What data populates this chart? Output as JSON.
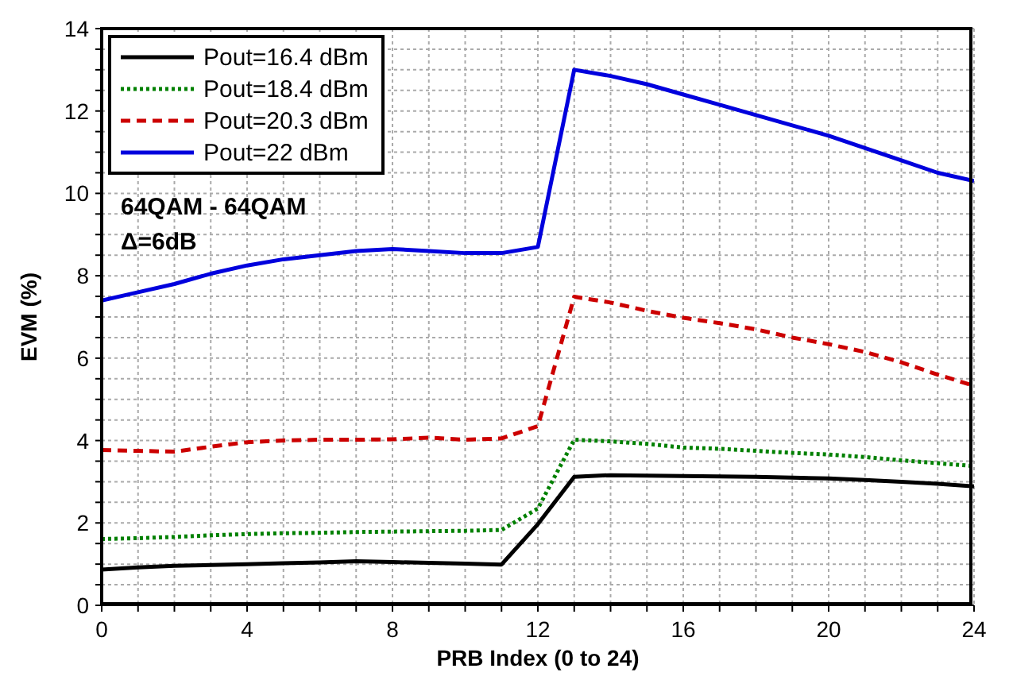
{
  "chart_data": {
    "type": "line",
    "xlabel": "PRB Index (0 to 24)",
    "ylabel": "EVM (%)",
    "x": [
      0,
      1,
      2,
      3,
      4,
      5,
      6,
      7,
      8,
      9,
      10,
      11,
      12,
      13,
      14,
      15,
      16,
      17,
      18,
      19,
      20,
      21,
      22,
      23,
      24
    ],
    "series": [
      {
        "name": "Pout=16.4 dBm",
        "color": "#000000",
        "line_style": "solid",
        "values": [
          0.87,
          0.92,
          0.96,
          0.98,
          1.0,
          1.02,
          1.04,
          1.07,
          1.05,
          1.03,
          1.01,
          0.99,
          1.97,
          3.12,
          3.16,
          3.15,
          3.14,
          3.13,
          3.12,
          3.1,
          3.08,
          3.04,
          3.0,
          2.95,
          2.89
        ]
      },
      {
        "name": "Pout=18.4 dBm",
        "color": "#008000",
        "line_style": "dotted",
        "values": [
          1.61,
          1.63,
          1.66,
          1.7,
          1.73,
          1.75,
          1.76,
          1.78,
          1.79,
          1.8,
          1.81,
          1.83,
          2.35,
          4.02,
          3.98,
          3.92,
          3.83,
          3.8,
          3.75,
          3.7,
          3.66,
          3.6,
          3.52,
          3.45,
          3.38
        ]
      },
      {
        "name": "Pout=20.3 dBm",
        "color": "#cc0000",
        "line_style": "dashed",
        "values": [
          3.77,
          3.75,
          3.73,
          3.85,
          3.96,
          4.0,
          4.02,
          4.02,
          4.03,
          4.07,
          4.02,
          4.05,
          4.35,
          7.49,
          7.35,
          7.15,
          6.98,
          6.85,
          6.7,
          6.5,
          6.34,
          6.15,
          5.9,
          5.6,
          5.33
        ]
      },
      {
        "name": "Pout=22 dBm",
        "color": "#0000dd",
        "line_style": "solid",
        "values": [
          7.4,
          7.6,
          7.8,
          8.05,
          8.25,
          8.4,
          8.5,
          8.6,
          8.65,
          8.6,
          8.55,
          8.55,
          8.7,
          13.0,
          12.85,
          12.65,
          12.4,
          12.15,
          11.9,
          11.65,
          11.4,
          11.1,
          10.8,
          10.5,
          10.3
        ]
      }
    ],
    "xlim": [
      0,
      24
    ],
    "xticks": [
      0,
      {
        "value": 1,
        "label": null
      },
      {
        "value": 2,
        "label": null
      },
      {
        "value": 3,
        "label": null
      },
      4,
      {
        "value": 5,
        "label": null
      },
      {
        "value": 6,
        "label": null
      },
      {
        "value": 7,
        "label": null
      },
      8,
      {
        "value": 9,
        "label": null
      },
      {
        "value": 10,
        "label": null
      },
      {
        "value": 11,
        "label": null
      },
      12,
      {
        "value": 13,
        "label": null
      },
      {
        "value": 14,
        "label": null
      },
      {
        "value": 15,
        "label": null
      },
      16,
      {
        "value": 17,
        "label": null
      },
      {
        "value": 18,
        "label": null
      },
      {
        "value": 19,
        "label": null
      },
      20,
      {
        "value": 21,
        "label": null
      },
      {
        "value": 22,
        "label": null
      },
      {
        "value": 23,
        "label": null
      },
      24
    ],
    "ylim": [
      0,
      14
    ],
    "yticks": [
      0,
      {
        "value": 0.5,
        "label": null
      },
      {
        "value": 1,
        "label": null
      },
      {
        "value": 1.5,
        "label": null
      },
      2,
      {
        "value": 2.5,
        "label": null
      },
      {
        "value": 3,
        "label": null
      },
      {
        "value": 3.5,
        "label": null
      },
      4,
      {
        "value": 4.5,
        "label": null
      },
      {
        "value": 5,
        "label": null
      },
      {
        "value": 5.5,
        "label": null
      },
      6,
      {
        "value": 6.5,
        "label": null
      },
      {
        "value": 7,
        "label": null
      },
      {
        "value": 7.5,
        "label": null
      },
      8,
      {
        "value": 8.5,
        "label": null
      },
      {
        "value": 9,
        "label": null
      },
      {
        "value": 9.5,
        "label": null
      },
      10,
      {
        "value": 10.5,
        "label": null
      },
      {
        "value": 11,
        "label": null
      },
      {
        "value": 11.5,
        "label": null
      },
      12,
      {
        "value": 12.5,
        "label": null
      },
      {
        "value": 13,
        "label": null
      },
      {
        "value": 13.5,
        "label": null
      },
      14
    ],
    "grid": true,
    "legend": "top left",
    "marker": "none",
    "annotations": [
      "64QAM - 64QAM",
      "Δ=6dB"
    ]
  }
}
